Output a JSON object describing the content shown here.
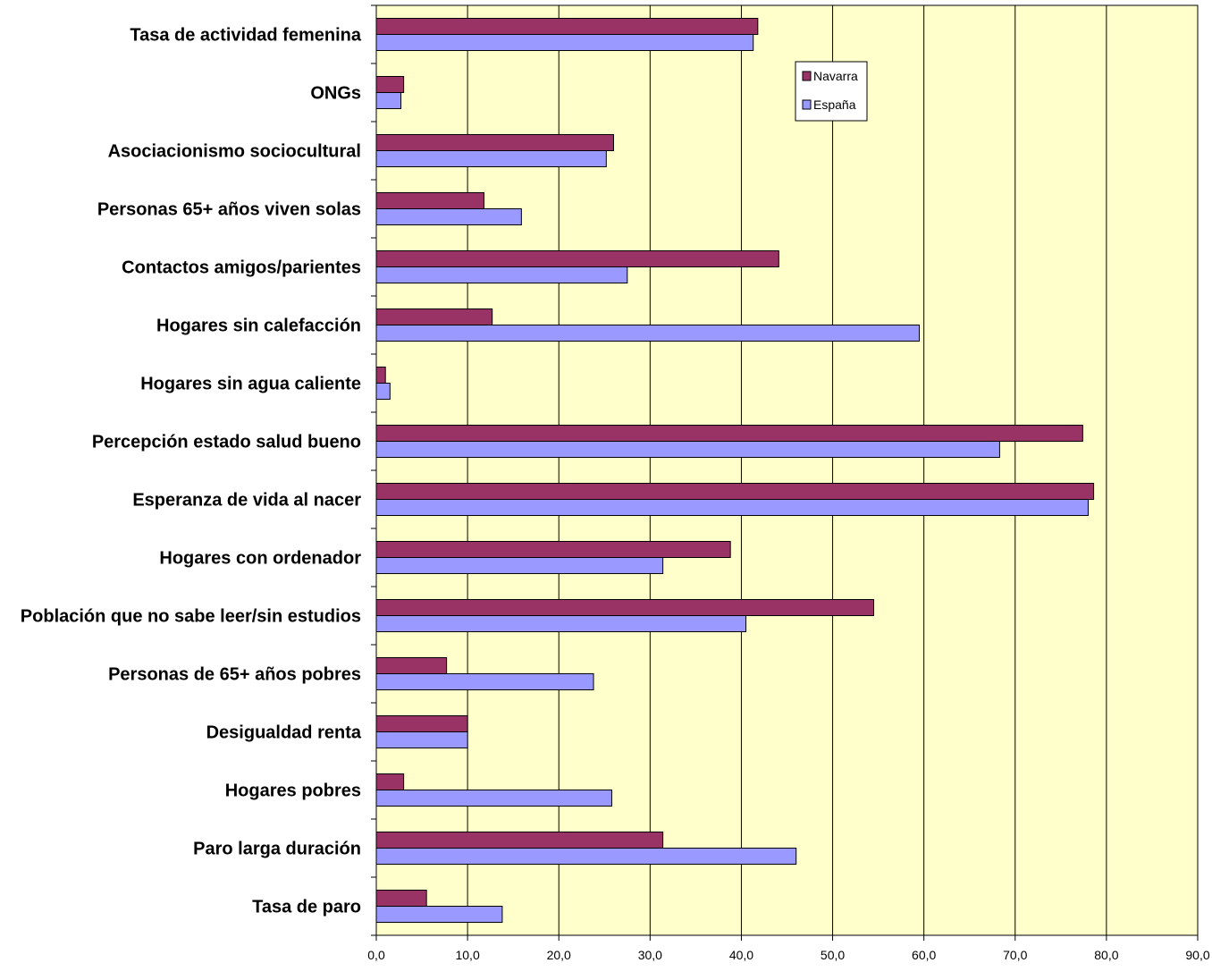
{
  "chart_data": {
    "type": "bar",
    "orientation": "horizontal",
    "categories": [
      "Tasa de actividad femenina",
      "ONGs",
      "Asociacionismo sociocultural",
      "Personas 65+ años viven solas",
      "Contactos amigos/parientes",
      "Hogares sin calefacción",
      "Hogares sin agua caliente",
      "Percepción estado salud bueno",
      "Esperanza de vida al nacer",
      "Hogares con ordenador",
      "Población que no sabe leer/sin estudios",
      "Personas de 65+ años pobres",
      "Desigualdad renta",
      "Hogares pobres",
      "Paro larga duración",
      "Tasa de paro"
    ],
    "series": [
      {
        "name": "Navarra",
        "color": "#993366",
        "values": [
          41.8,
          3.0,
          26.0,
          11.8,
          44.1,
          12.7,
          1.0,
          77.4,
          78.6,
          38.8,
          54.5,
          7.7,
          10.0,
          3.0,
          31.4,
          5.5
        ]
      },
      {
        "name": "España",
        "color": "#9999FF",
        "values": [
          41.3,
          2.7,
          25.2,
          15.9,
          27.5,
          59.5,
          1.5,
          68.3,
          78.0,
          31.4,
          40.5,
          23.8,
          10.0,
          25.8,
          46.0,
          13.8
        ]
      }
    ],
    "xlim": [
      0,
      90
    ],
    "xticks": [
      "0,0",
      "10,0",
      "20,0",
      "30,0",
      "40,0",
      "50,0",
      "60,0",
      "70,0",
      "80,0",
      "90,0"
    ],
    "grid": true,
    "plot_background": "#FFFFCC",
    "legend_position": "top-right"
  }
}
